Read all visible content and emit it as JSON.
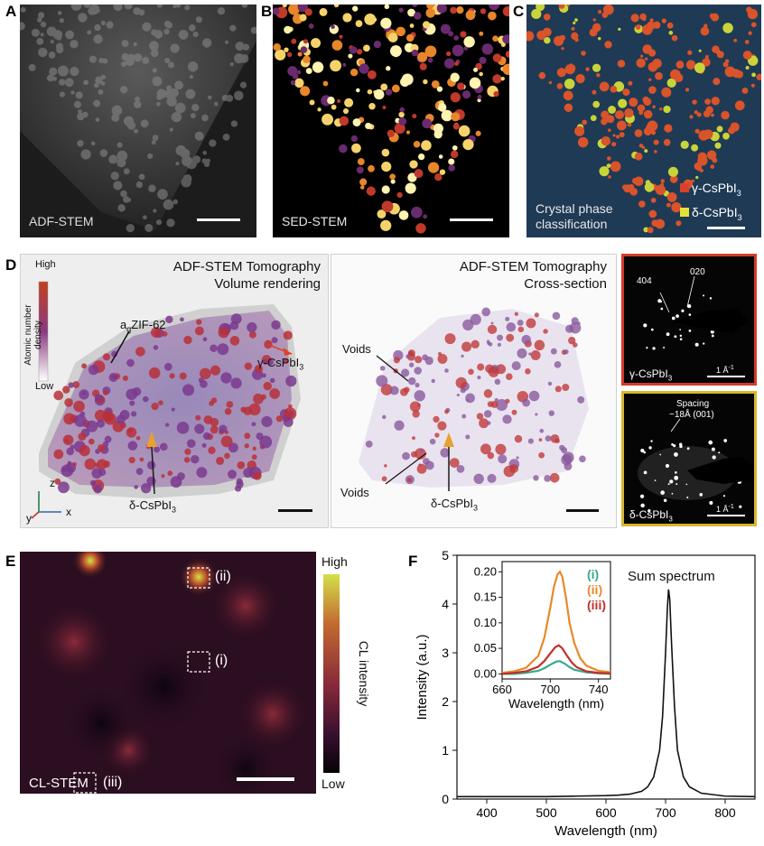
{
  "panel_a": {
    "letter": "A",
    "label": "ADF-STEM"
  },
  "panel_b": {
    "letter": "B",
    "label": "SED-STEM"
  },
  "panel_c": {
    "letter": "C",
    "label_line1": "Crystal phase",
    "label_line2": "classification",
    "legend": [
      {
        "text": "γ-CsPbI",
        "sub": "3",
        "color": "#d9412b"
      },
      {
        "text": "δ-CsPbI",
        "sub": "3",
        "color": "#e6e23a"
      }
    ]
  },
  "panel_d": {
    "letter": "D",
    "left_title1": "ADF-STEM Tomography",
    "left_title2": "Volume rendering",
    "colorbar_high": "High",
    "colorbar_low": "Low",
    "colorbar_title": "Atomic number density",
    "label_agzif_prefix": "a",
    "label_agzif_sub": "g",
    "label_agzif_suffix": "ZIF-62",
    "label_gamma": "γ-CsPbI",
    "label_delta": "δ-CsPbI",
    "sub3": "3",
    "axis_z": "z",
    "axis_y": "y",
    "axis_x": "x",
    "mid_title1": "ADF-STEM Tomography",
    "mid_title2": "Cross-section",
    "voids": "Voids",
    "diff_top_404": "404",
    "diff_top_020": "020",
    "diff_top_phase": "γ-CsPbI",
    "diff_scale": "1 Å",
    "diff_scale_sup": "-1",
    "diff_bot_spacing1": "Spacing",
    "diff_bot_spacing2": "~18Å (001)",
    "diff_bot_phase": "δ-CsPbI"
  },
  "panel_e": {
    "letter": "E",
    "label": "CL-STEM",
    "roi_i": "(i)",
    "roi_ii": "(ii)",
    "roi_iii": "(iii)",
    "cbar_high": "High",
    "cbar_low": "Low",
    "cbar_title": "CL intensity"
  },
  "panel_f": {
    "letter": "F",
    "sum_label": "Sum spectrum",
    "xlabel": "Wavelength (nm)",
    "ylabel": "Intensity (a.u.)",
    "legend": [
      {
        "text": "(i)",
        "color": "#3aa88c"
      },
      {
        "text": "(ii)",
        "color": "#e8892a"
      },
      {
        "text": "(iii)",
        "color": "#c0302a"
      }
    ]
  },
  "chart_data": [
    {
      "type": "line",
      "xlabel": "Wavelength (nm)",
      "ylabel": "Intensity (a.u.)",
      "xlim": [
        350,
        850
      ],
      "ylim": [
        0,
        5
      ],
      "xticks": [
        400,
        500,
        600,
        700,
        800
      ],
      "yticks": [
        0,
        1,
        2,
        3,
        4,
        5
      ],
      "series": [
        {
          "name": "Sum spectrum",
          "x": [
            350,
            400,
            450,
            500,
            550,
            600,
            620,
            640,
            660,
            670,
            680,
            690,
            695,
            700,
            703,
            705,
            707,
            710,
            715,
            720,
            730,
            740,
            760,
            800,
            850
          ],
          "y": [
            0.05,
            0.05,
            0.05,
            0.05,
            0.06,
            0.07,
            0.08,
            0.1,
            0.16,
            0.25,
            0.45,
            1.0,
            1.7,
            3.0,
            3.9,
            4.3,
            4.1,
            3.2,
            1.9,
            1.0,
            0.45,
            0.25,
            0.12,
            0.06,
            0.05
          ]
        }
      ]
    },
    {
      "type": "line",
      "xlabel": "Wavelength (nm)",
      "xlim": [
        660,
        750
      ],
      "ylim": [
        -0.01,
        0.22
      ],
      "xticks": [
        660,
        700,
        740
      ],
      "yticks": [
        0.0,
        0.05,
        0.1,
        0.15,
        0.2
      ],
      "ytick_labels": [
        "0.00",
        "0.05",
        "0.10",
        "0.15",
        "0.20"
      ],
      "series": [
        {
          "name": "(i)",
          "color": "#3aa88c",
          "x": [
            660,
            670,
            680,
            690,
            695,
            700,
            705,
            708,
            712,
            716,
            720,
            730,
            740,
            750
          ],
          "y": [
            0.0,
            0.0,
            0.002,
            0.006,
            0.011,
            0.018,
            0.024,
            0.025,
            0.02,
            0.013,
            0.008,
            0.003,
            0.001,
            0.0
          ]
        },
        {
          "name": "(ii)",
          "color": "#e8892a",
          "x": [
            660,
            670,
            680,
            690,
            695,
            700,
            703,
            706,
            708,
            710,
            713,
            716,
            720,
            725,
            730,
            740,
            750
          ],
          "y": [
            0.002,
            0.005,
            0.012,
            0.035,
            0.07,
            0.13,
            0.17,
            0.195,
            0.2,
            0.19,
            0.15,
            0.1,
            0.06,
            0.03,
            0.016,
            0.006,
            0.003
          ]
        },
        {
          "name": "(iii)",
          "color": "#c0302a",
          "x": [
            660,
            670,
            680,
            690,
            695,
            700,
            704,
            707,
            710,
            714,
            718,
            722,
            730,
            740,
            750
          ],
          "y": [
            0.0,
            0.002,
            0.005,
            0.014,
            0.025,
            0.04,
            0.052,
            0.056,
            0.05,
            0.035,
            0.022,
            0.013,
            0.005,
            0.002,
            0.001
          ]
        }
      ]
    }
  ]
}
